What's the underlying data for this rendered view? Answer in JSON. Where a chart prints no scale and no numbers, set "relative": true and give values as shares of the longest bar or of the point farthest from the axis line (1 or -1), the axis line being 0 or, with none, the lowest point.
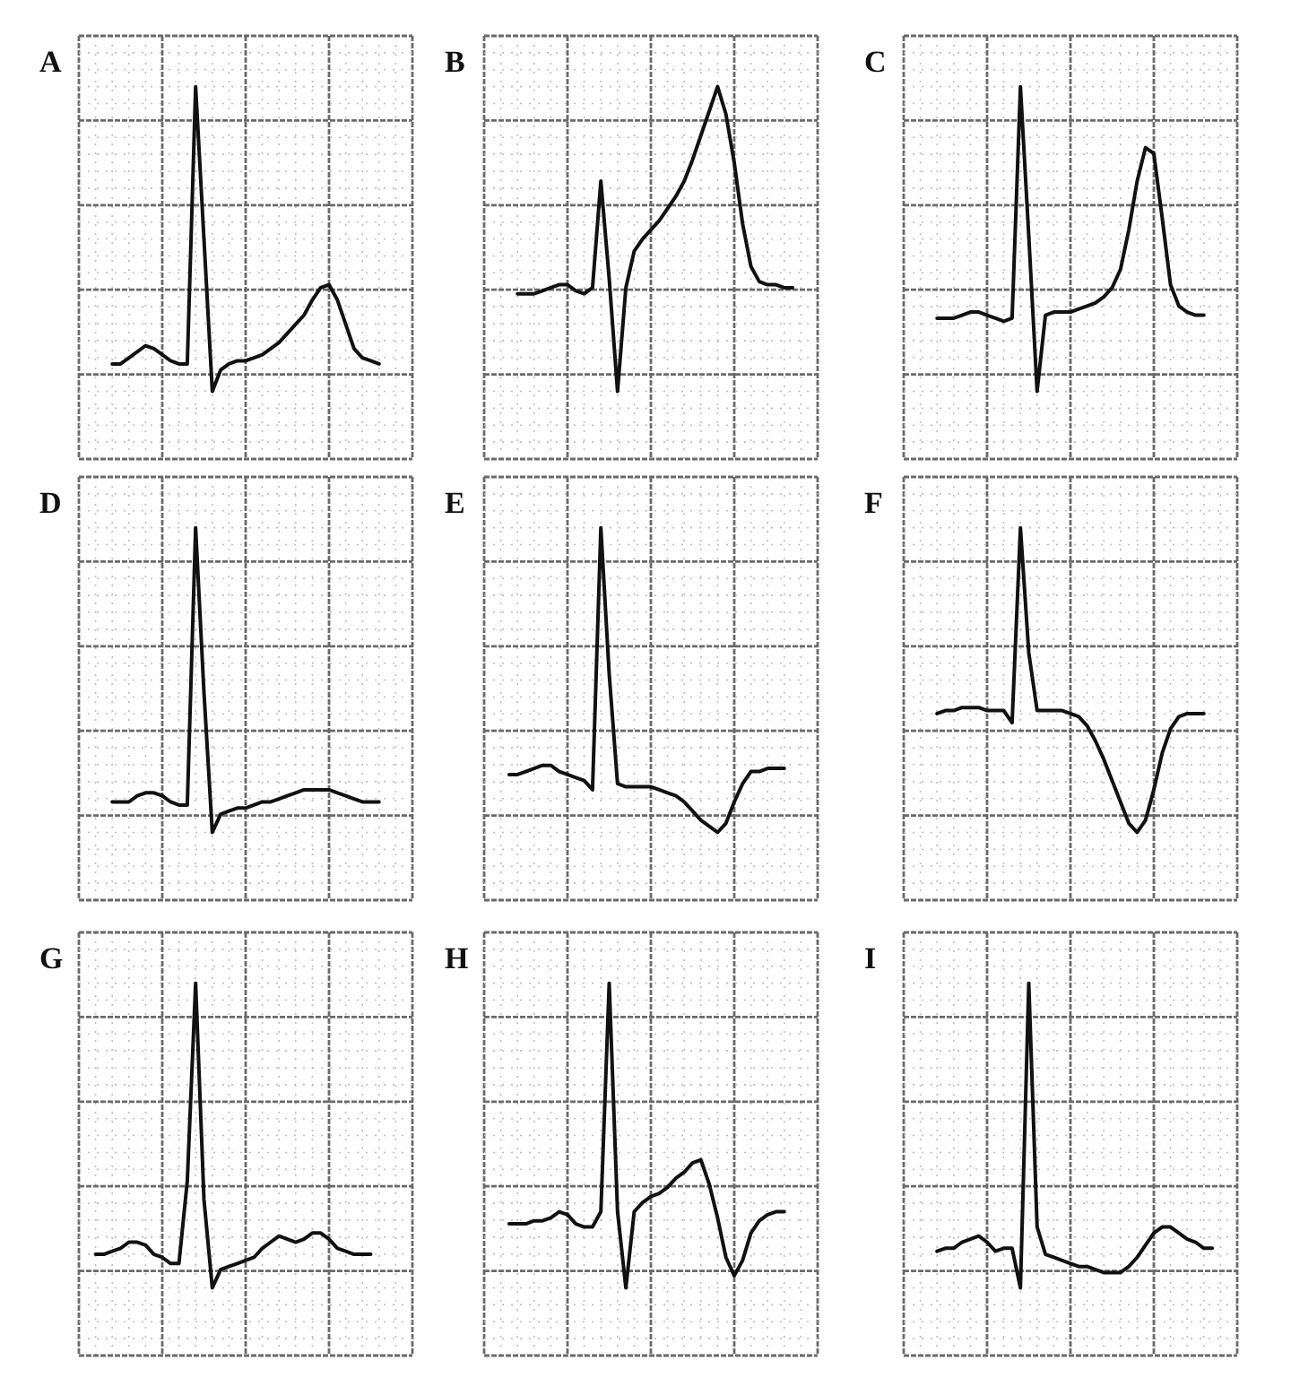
{
  "chart_data": [
    {
      "type": "line",
      "title": "A",
      "relative": true,
      "grid": true,
      "color": "#111111",
      "categories": [
        null,
        null,
        null,
        null,
        null,
        null,
        null,
        null,
        null,
        null,
        null,
        null,
        null,
        null,
        null,
        null,
        null,
        null,
        null,
        null,
        null,
        null,
        null,
        null,
        null,
        null,
        null,
        null,
        null,
        null,
        null,
        null,
        null,
        null,
        null,
        null,
        null,
        null,
        null,
        null,
        null
      ],
      "values": [
        null,
        null,
        null,
        null,
        0.09,
        0.09,
        0.11,
        0.13,
        0.15,
        0.14,
        0.12,
        0.1,
        0.09,
        0.09,
        1,
        0.5,
        0,
        0.07,
        0.09,
        0.1,
        0.1,
        0.11,
        0.12,
        0.14,
        0.16,
        0.19,
        0.22,
        0.25,
        0.3,
        0.34,
        0.35,
        0.3,
        0.22,
        0.14,
        0.11,
        0.1,
        0.09,
        null,
        null,
        null,
        null
      ]
    },
    {
      "type": "line",
      "title": "B",
      "relative": true,
      "grid": true,
      "color": "#111111",
      "categories": [
        null,
        null,
        null,
        null,
        null,
        null,
        null,
        null,
        null,
        null,
        null,
        null,
        null,
        null,
        null,
        null,
        null,
        null,
        null,
        null,
        null,
        null,
        null,
        null,
        null,
        null,
        null,
        null,
        null,
        null,
        null,
        null,
        null,
        null,
        null,
        null,
        null,
        null,
        null,
        null,
        null
      ],
      "values": [
        null,
        null,
        null,
        null,
        0.32,
        0.32,
        0.32,
        0.33,
        0.34,
        0.35,
        0.35,
        0.33,
        0.32,
        0.34,
        0.69,
        0.37,
        0,
        0.34,
        0.46,
        0.5,
        0.53,
        0.56,
        0.6,
        0.64,
        0.69,
        0.76,
        0.84,
        0.92,
        1,
        0.91,
        0.75,
        0.55,
        0.41,
        0.36,
        0.35,
        0.35,
        0.34,
        0.34,
        null,
        null,
        null
      ]
    },
    {
      "type": "line",
      "title": "C",
      "relative": true,
      "grid": true,
      "color": "#111111",
      "categories": [
        null,
        null,
        null,
        null,
        null,
        null,
        null,
        null,
        null,
        null,
        null,
        null,
        null,
        null,
        null,
        null,
        null,
        null,
        null,
        null,
        null,
        null,
        null,
        null,
        null,
        null,
        null,
        null,
        null,
        null,
        null,
        null,
        null,
        null,
        null,
        null,
        null,
        null,
        null,
        null,
        null
      ],
      "values": [
        null,
        null,
        null,
        null,
        0.24,
        0.24,
        0.24,
        0.25,
        0.26,
        0.26,
        0.25,
        0.24,
        0.23,
        0.24,
        1,
        0.51,
        0,
        0.25,
        0.26,
        0.26,
        0.26,
        0.27,
        0.28,
        0.29,
        0.31,
        0.34,
        0.4,
        0.53,
        0.69,
        0.8,
        0.78,
        0.57,
        0.35,
        0.28,
        0.26,
        0.25,
        0.25,
        null,
        null,
        null,
        null
      ]
    },
    {
      "type": "line",
      "title": "D",
      "relative": true,
      "grid": true,
      "color": "#111111",
      "categories": [
        null,
        null,
        null,
        null,
        null,
        null,
        null,
        null,
        null,
        null,
        null,
        null,
        null,
        null,
        null,
        null,
        null,
        null,
        null,
        null,
        null,
        null,
        null,
        null,
        null,
        null,
        null,
        null,
        null,
        null,
        null,
        null,
        null,
        null,
        null,
        null,
        null,
        null,
        null,
        null,
        null
      ],
      "values": [
        null,
        null,
        null,
        null,
        0.1,
        0.1,
        0.1,
        0.12,
        0.13,
        0.13,
        0.12,
        0.1,
        0.09,
        0.09,
        1,
        0.46,
        0,
        0.06,
        0.07,
        0.08,
        0.08,
        0.09,
        0.1,
        0.1,
        0.11,
        0.12,
        0.13,
        0.14,
        0.14,
        0.14,
        0.14,
        0.13,
        0.12,
        0.11,
        0.1,
        0.1,
        0.1,
        null,
        null,
        null,
        null
      ]
    },
    {
      "type": "line",
      "title": "E",
      "relative": true,
      "grid": true,
      "color": "#111111",
      "categories": [
        null,
        null,
        null,
        null,
        null,
        null,
        null,
        null,
        null,
        null,
        null,
        null,
        null,
        null,
        null,
        null,
        null,
        null,
        null,
        null,
        null,
        null,
        null,
        null,
        null,
        null,
        null,
        null,
        null,
        null,
        null,
        null,
        null,
        null,
        null,
        null,
        null,
        null,
        null,
        null,
        null
      ],
      "values": [
        null,
        null,
        null,
        0.19,
        0.19,
        0.2,
        0.21,
        0.22,
        0.22,
        0.2,
        0.19,
        0.18,
        0.17,
        0.14,
        1,
        0.52,
        0.16,
        0.15,
        0.15,
        0.15,
        0.15,
        0.14,
        0.13,
        0.12,
        0.1,
        0.07,
        0.04,
        0.02,
        0,
        0.03,
        0.1,
        0.16,
        0.2,
        0.2,
        0.21,
        0.21,
        0.21,
        null,
        null,
        null,
        null
      ]
    },
    {
      "type": "line",
      "title": "F",
      "relative": true,
      "grid": true,
      "color": "#111111",
      "categories": [
        null,
        null,
        null,
        null,
        null,
        null,
        null,
        null,
        null,
        null,
        null,
        null,
        null,
        null,
        null,
        null,
        null,
        null,
        null,
        null,
        null,
        null,
        null,
        null,
        null,
        null,
        null,
        null,
        null,
        null,
        null,
        null,
        null,
        null,
        null,
        null,
        null,
        null,
        null,
        null,
        null
      ],
      "values": [
        null,
        null,
        null,
        null,
        0.39,
        0.4,
        0.4,
        0.41,
        0.41,
        0.41,
        0.4,
        0.4,
        0.4,
        0.36,
        1,
        0.59,
        0.4,
        0.4,
        0.4,
        0.4,
        0.39,
        0.38,
        0.35,
        0.3,
        0.24,
        0.17,
        0.1,
        0.03,
        0,
        0.04,
        0.14,
        0.26,
        0.34,
        0.38,
        0.39,
        0.39,
        0.39,
        null,
        null,
        null,
        null
      ]
    },
    {
      "type": "line",
      "title": "G",
      "relative": true,
      "grid": true,
      "color": "#111111",
      "categories": [
        null,
        null,
        null,
        null,
        null,
        null,
        null,
        null,
        null,
        null,
        null,
        null,
        null,
        null,
        null,
        null,
        null,
        null,
        null,
        null,
        null,
        null,
        null,
        null,
        null,
        null,
        null,
        null,
        null,
        null,
        null,
        null,
        null,
        null,
        null,
        null,
        null,
        null,
        null,
        null,
        null
      ],
      "values": [
        null,
        null,
        0.11,
        0.11,
        0.12,
        0.13,
        0.15,
        0.15,
        0.14,
        0.11,
        0.1,
        0.08,
        0.08,
        0.35,
        1,
        0.29,
        0,
        0.06,
        0.07,
        0.08,
        0.09,
        0.1,
        0.13,
        0.15,
        0.17,
        0.16,
        0.15,
        0.16,
        0.18,
        0.18,
        0.16,
        0.13,
        0.12,
        0.11,
        0.11,
        0.11,
        null,
        null,
        null,
        null,
        null
      ]
    },
    {
      "type": "line",
      "title": "H",
      "relative": true,
      "grid": true,
      "color": "#111111",
      "categories": [
        null,
        null,
        null,
        null,
        null,
        null,
        null,
        null,
        null,
        null,
        null,
        null,
        null,
        null,
        null,
        null,
        null,
        null,
        null,
        null,
        null,
        null,
        null,
        null,
        null,
        null,
        null,
        null,
        null,
        null,
        null,
        null,
        null,
        null,
        null,
        null,
        null,
        null,
        null,
        null,
        null
      ],
      "values": [
        null,
        null,
        null,
        0.21,
        0.21,
        0.21,
        0.22,
        0.22,
        0.23,
        0.25,
        0.24,
        0.21,
        0.2,
        0.2,
        0.25,
        1,
        0.25,
        0,
        0.25,
        0.28,
        0.3,
        0.31,
        0.33,
        0.36,
        0.38,
        0.41,
        0.42,
        0.34,
        0.23,
        0.1,
        0.04,
        0.09,
        0.18,
        0.22,
        0.24,
        0.25,
        0.25,
        null,
        null,
        null,
        null
      ]
    },
    {
      "type": "line",
      "title": "I",
      "relative": true,
      "grid": true,
      "color": "#111111",
      "categories": [
        null,
        null,
        null,
        null,
        null,
        null,
        null,
        null,
        null,
        null,
        null,
        null,
        null,
        null,
        null,
        null,
        null,
        null,
        null,
        null,
        null,
        null,
        null,
        null,
        null,
        null,
        null,
        null,
        null,
        null,
        null,
        null,
        null,
        null,
        null,
        null,
        null,
        null,
        null,
        null,
        null
      ],
      "values": [
        null,
        null,
        null,
        null,
        0.12,
        0.13,
        0.13,
        0.15,
        0.16,
        0.17,
        0.15,
        0.12,
        0.13,
        0.13,
        0,
        1,
        0.2,
        0.11,
        0.1,
        0.09,
        0.08,
        0.07,
        0.07,
        0.06,
        0.05,
        0.05,
        0.05,
        0.07,
        0.1,
        0.14,
        0.18,
        0.2,
        0.2,
        0.18,
        0.16,
        0.15,
        0.13,
        0.13,
        null,
        null,
        null
      ]
    }
  ]
}
